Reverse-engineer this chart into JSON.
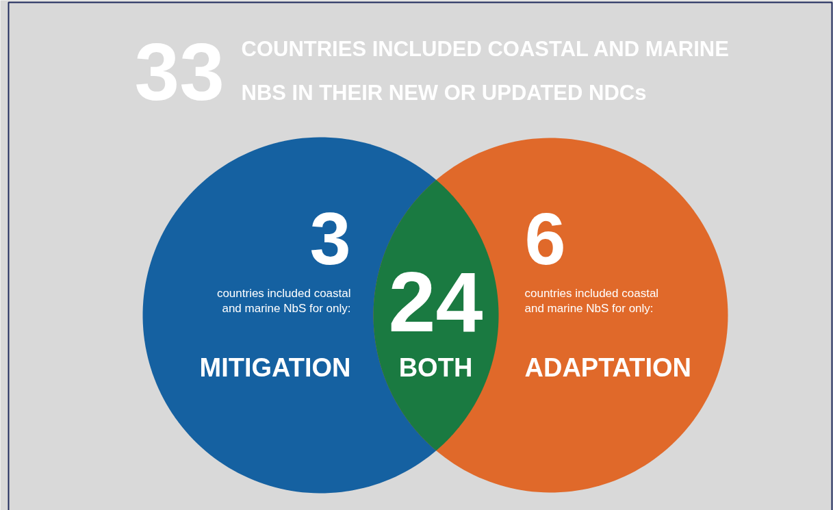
{
  "chart_data": {
    "type": "other",
    "title": "33",
    "subtitle": "COUNTRIES INCLUDED COASTAL AND MARINE NBS IN THEIR NEW OR UPDATED  NDCs",
    "categories": [
      "MITIGATION",
      "BOTH",
      "ADAPTATION"
    ],
    "values": [
      3,
      24,
      6
    ],
    "data_labels": true,
    "colors": [
      "#1561a1",
      "#1a7a41",
      "#e0692a"
    ],
    "annotations": [
      "countries included coastal and marine NbS for only:",
      "countries included coastal and marine NbS for only:"
    ]
  }
}
